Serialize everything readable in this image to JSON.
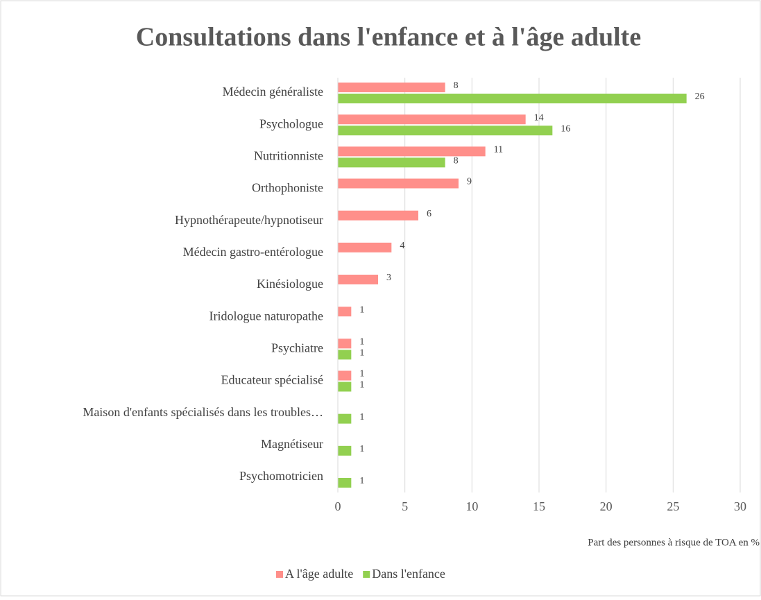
{
  "chart_data": {
    "type": "bar",
    "orientation": "horizontal",
    "title": "Consultations dans l'enfance et à l'âge adulte",
    "x_label": "Part des personnes à risque de TOA en %",
    "categories": [
      "Médecin généraliste",
      "Psychologue",
      "Nutritionniste",
      "Orthophoniste",
      "Hypnothérapeute/hypnotiseur",
      "Médecin gastro-entérologue",
      "Kinésiologue",
      "Iridologue naturopathe",
      "Psychiatre",
      "Educateur spécialisé",
      "Maison d'enfants spécialisés dans les troubles…",
      "Magnétiseur",
      "Psychomotricien"
    ],
    "series": [
      {
        "name": "A l'âge adulte",
        "color": "#ff8f8a",
        "values": [
          8,
          14,
          11,
          9,
          6,
          4,
          3,
          1,
          1,
          1,
          null,
          null,
          null
        ]
      },
      {
        "name": "Dans l'enfance",
        "color": "#92d050",
        "values": [
          26,
          16,
          8,
          null,
          null,
          null,
          null,
          null,
          1,
          1,
          1,
          1,
          1
        ]
      }
    ],
    "xlim": [
      0,
      30
    ],
    "xticks": [
      0,
      5,
      10,
      15,
      20,
      25,
      30
    ],
    "grid": true,
    "legend": "bottom"
  }
}
